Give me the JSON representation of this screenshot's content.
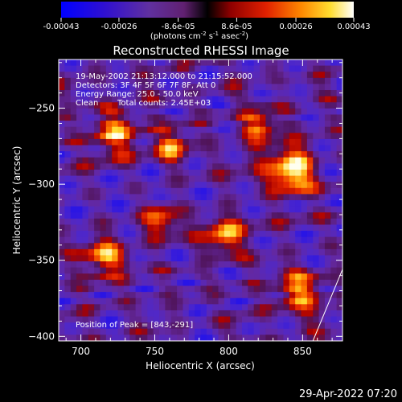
{
  "colorbar": {
    "tick_labels": [
      "-0.00043",
      "-0.00026",
      "-8.6e-05",
      "8.6e-05",
      "0.00026",
      "0.00043"
    ],
    "unit_line1": "(photons cm",
    "unit_sup1": "-2",
    "unit_mid": " s",
    "unit_sup2": "-1",
    "unit_end": " asec",
    "unit_sup3": "-2",
    "unit_close": ")"
  },
  "chart_data": {
    "type": "heatmap",
    "title": "Reconstructed RHESSI Image",
    "xlabel": "Heliocentric X (arcsec)",
    "ylabel": "Heliocentric Y (arcsec)",
    "xlim": [
      685,
      877
    ],
    "ylim": [
      -403,
      -218
    ],
    "x_ticks": [
      700,
      750,
      800,
      850
    ],
    "y_ticks": [
      -250,
      -300,
      -350,
      -400
    ],
    "x_tick_labels": [
      "700",
      "750",
      "800",
      "850"
    ],
    "y_tick_labels": [
      "−250",
      "−300",
      "−350",
      "−400"
    ],
    "colorscale_range": [
      -0.00043,
      0.00043
    ],
    "annotations": [
      "19-May-2002 21:13:12.000 to 21:15:52.000",
      "Detectors: 3F 4F 5F 6F 7F 8F, Att 0",
      "Energy Range: 25.0 - 50.0 keV",
      "Clean",
      "Total counts: 2.45E+03"
    ],
    "peak_label": "Position of Peak = [843,-291]",
    "peak": {
      "x": 843,
      "y": -291
    },
    "bright_sources": [
      {
        "x": 723,
        "y": -267
      },
      {
        "x": 762,
        "y": -276
      },
      {
        "x": 843,
        "y": -291
      },
      {
        "x": 797,
        "y": -333
      },
      {
        "x": 716,
        "y": -347
      },
      {
        "x": 754,
        "y": -323
      },
      {
        "x": 848,
        "y": -371
      },
      {
        "x": 821,
        "y": -262
      }
    ],
    "limb_line": {
      "x": [
        857,
        877
      ],
      "y": [
        -403,
        -356
      ]
    },
    "colors": {
      "min": "#0000ff",
      "negative_mid": "#5020b0",
      "zero": "#000000",
      "positive_low": "#cc0000",
      "positive_mid": "#ff8800",
      "max": "#ffffff"
    }
  },
  "footer": {
    "timestamp": "29-Apr-2022 07:20"
  }
}
